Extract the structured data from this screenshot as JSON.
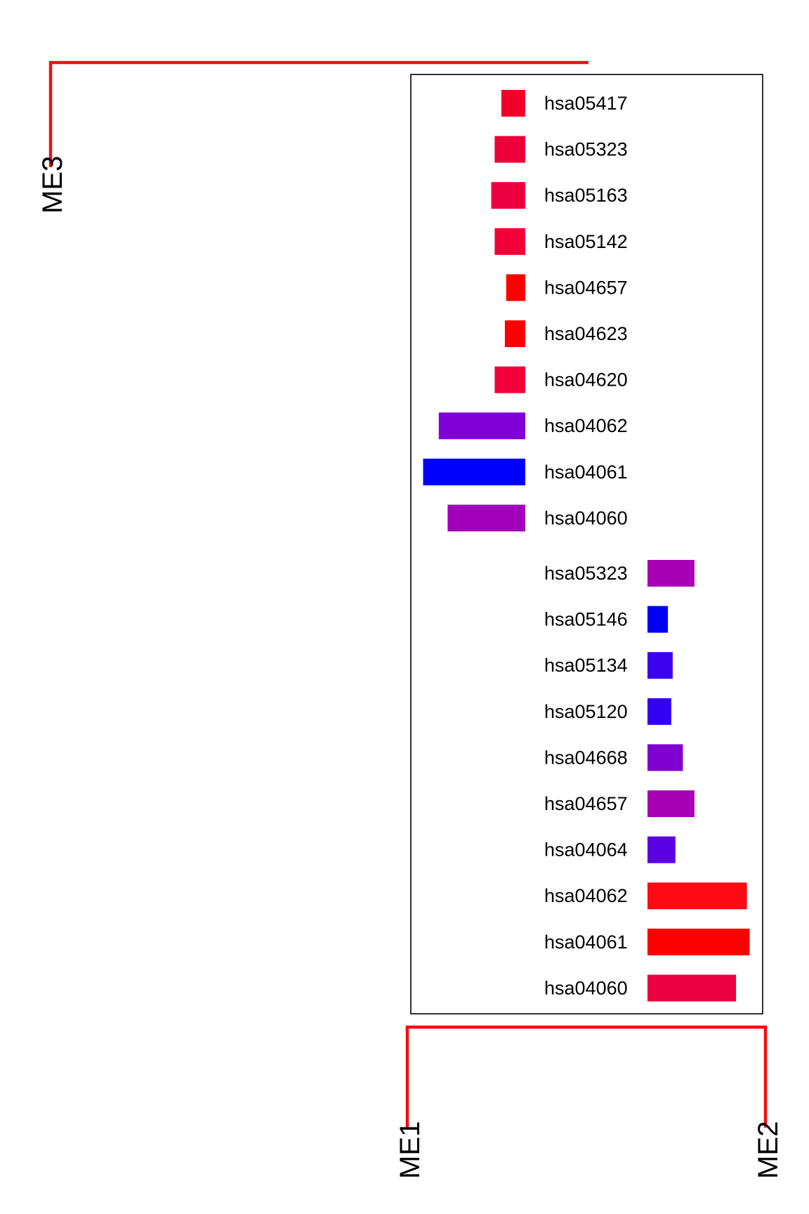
{
  "chart_data": {
    "type": "bar",
    "orientation": "horizontal",
    "legend": "none",
    "grid": false,
    "dendrogram_color": "#ee1111",
    "modules": [
      "ME3",
      "ME1",
      "ME2"
    ],
    "groups": [
      {
        "module": "ME3",
        "direction": "left",
        "categories": [
          "hsa05417",
          "hsa05323",
          "hsa05163",
          "hsa05142",
          "hsa04657",
          "hsa04623",
          "hsa04620",
          "hsa04062",
          "hsa04061",
          "hsa04060"
        ],
        "values": [
          3.5,
          4.5,
          5.0,
          4.5,
          2.8,
          3.0,
          4.5,
          12.7,
          15.0,
          11.4
        ],
        "colors": [
          "#f20028",
          "#ee003a",
          "#ee0040",
          "#f20038",
          "#ff0000",
          "#ff0000",
          "#f2003a",
          "#8000d8",
          "#0000ff",
          "#a000b8"
        ]
      },
      {
        "module": "ME2",
        "direction": "right",
        "categories": [
          "hsa05323",
          "hsa05146",
          "hsa05134",
          "hsa05120",
          "hsa04668",
          "hsa04657",
          "hsa04064",
          "hsa04062",
          "hsa04061",
          "hsa04060"
        ],
        "values": [
          6.9,
          3.0,
          3.7,
          3.5,
          5.2,
          6.9,
          4.1,
          14.6,
          15.0,
          13.0
        ],
        "colors": [
          "#a800b4",
          "#0000f2",
          "#3c00ee",
          "#3400f2",
          "#8000d0",
          "#a800b4",
          "#5c00e4",
          "#ff0a14",
          "#ff0000",
          "#ec0040"
        ]
      }
    ]
  }
}
